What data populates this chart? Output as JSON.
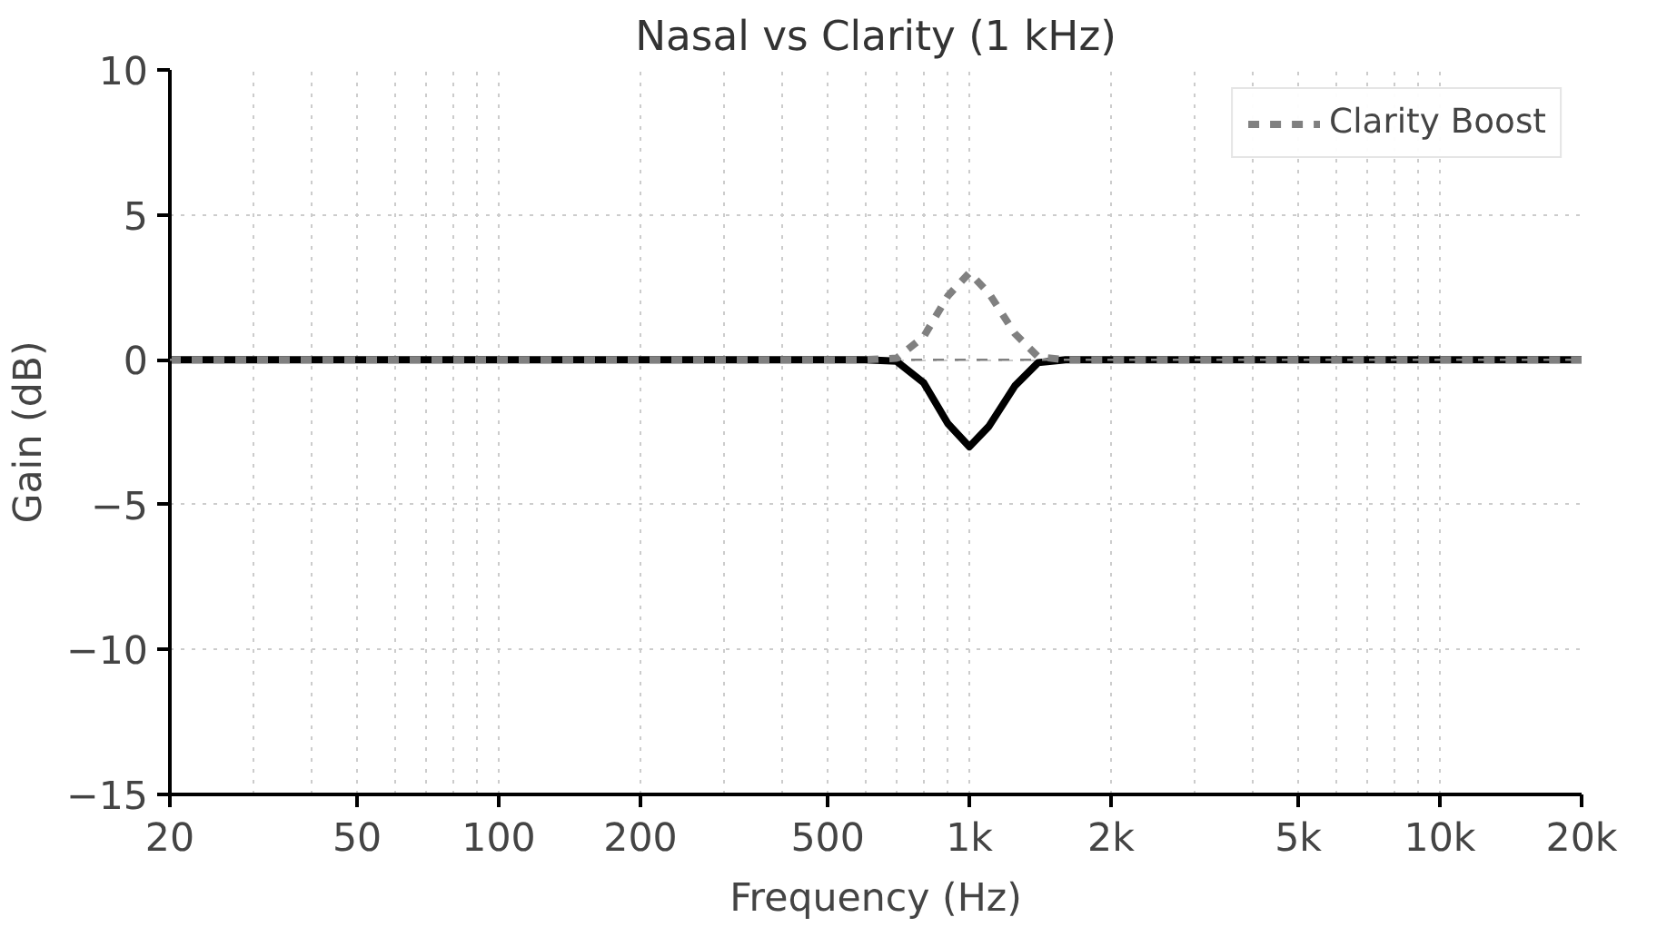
{
  "chart_data": {
    "type": "line",
    "title": "Nasal vs Clarity (1 kHz)",
    "xlabel": "Frequency (Hz)",
    "ylabel": "Gain (dB)",
    "log": "x",
    "grid": true,
    "legend": "top right",
    "xlim": [
      20,
      20000
    ],
    "ylim": [
      -15,
      10
    ],
    "xticks": [
      20,
      50,
      100,
      200,
      500,
      {
        "value": 1000,
        "label": "1k"
      },
      {
        "value": 2000,
        "label": "2k"
      },
      {
        "value": 5000,
        "label": "5k"
      },
      {
        "value": 10000,
        "label": "10k"
      },
      {
        "value": 20000,
        "label": "20k"
      }
    ],
    "yticks": [
      {
        "value": -15,
        "label": "−15"
      },
      {
        "value": -10,
        "label": "−10"
      },
      {
        "value": -5,
        "label": "−5"
      },
      0,
      5,
      10
    ],
    "ref_lines": [
      {
        "axis": "y",
        "value": 0,
        "color": "#808080",
        "line_style": "dashed"
      }
    ],
    "series": [
      {
        "color": "#000000",
        "line_style": "solid",
        "x": [
          20,
          600,
          700,
          800,
          900,
          1000,
          1100,
          1250,
          1400,
          1600,
          20000
        ],
        "values": [
          0,
          0,
          -0.05,
          -0.8,
          -2.2,
          -3,
          -2.3,
          -0.9,
          -0.1,
          0,
          0
        ]
      },
      {
        "name": "Clarity Boost",
        "color": "#808080",
        "line_style": "dashed",
        "x": [
          20,
          600,
          700,
          800,
          900,
          1000,
          1100,
          1250,
          1400,
          1600,
          20000
        ],
        "values": [
          0,
          0,
          0.05,
          0.8,
          2.2,
          3,
          2.3,
          0.9,
          0.1,
          0,
          0
        ]
      }
    ]
  }
}
